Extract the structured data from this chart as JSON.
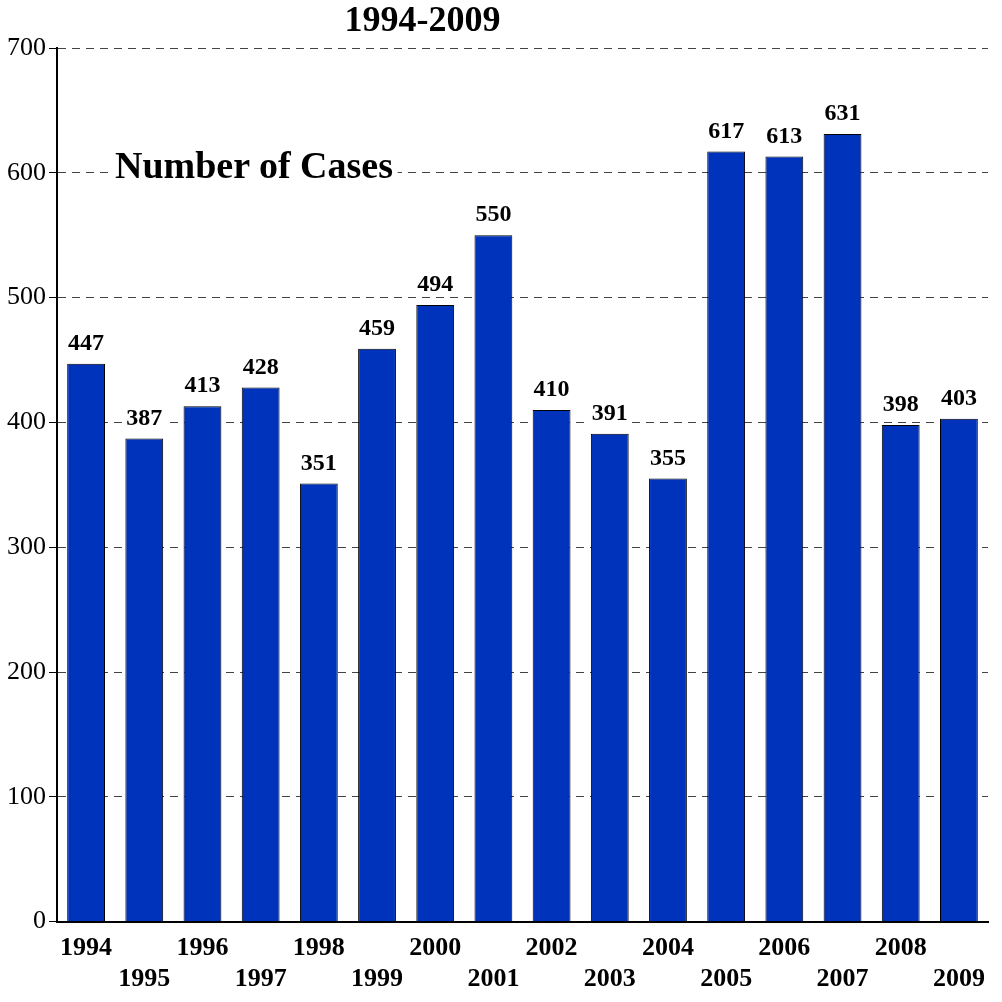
{
  "chart_data": {
    "type": "bar",
    "title": "1994-2009",
    "categories": [
      "1994",
      "1995",
      "1996",
      "1997",
      "1998",
      "1999",
      "2000",
      "2001",
      "2002",
      "2003",
      "2004",
      "2005",
      "2006",
      "2007",
      "2008",
      "2009"
    ],
    "values": [
      447,
      387,
      413,
      428,
      351,
      459,
      494,
      550,
      410,
      391,
      355,
      617,
      613,
      631,
      398,
      403
    ],
    "color": "#0033bb",
    "ylim": [
      0,
      700
    ],
    "yticks": [
      0,
      100,
      200,
      300,
      400,
      500,
      600,
      700
    ],
    "grid": "y",
    "legend": false,
    "data_labels": true,
    "annotations": [
      "Number of Cases"
    ]
  }
}
